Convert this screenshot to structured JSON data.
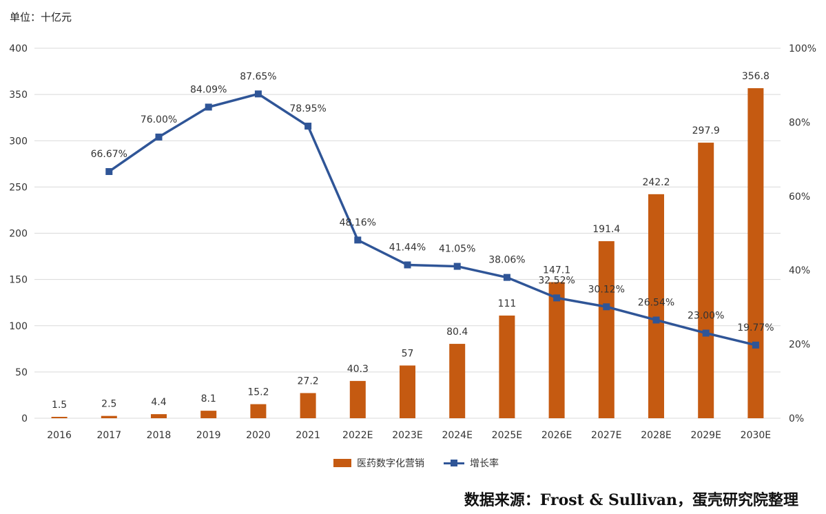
{
  "unit_label": "单位：十亿元",
  "source": "数据来源：Frost & Sullivan，蛋壳研究院整理",
  "colors": {
    "bar": "#C55A11",
    "line": "#2F5597",
    "grid": "#D9D9D9"
  },
  "chart_data": {
    "type": "bar",
    "categories": [
      "2016",
      "2017",
      "2018",
      "2019",
      "2020",
      "2021",
      "2022E",
      "2023E",
      "2024E",
      "2025E",
      "2026E",
      "2027E",
      "2028E",
      "2029E",
      "2030E"
    ],
    "series": [
      {
        "name": "医药数字化营销",
        "type": "bar",
        "axis": "left",
        "values": [
          1.5,
          2.5,
          4.4,
          8.1,
          15.2,
          27.2,
          40.3,
          57,
          80.4,
          111,
          147.1,
          191.4,
          242.2,
          297.9,
          356.8
        ],
        "labels": [
          "1.5",
          "2.5",
          "4.4",
          "8.1",
          "15.2",
          "27.2",
          "40.3",
          "57",
          "80.4",
          "111",
          "147.1",
          "191.4",
          "242.2",
          "297.9",
          "356.8"
        ]
      },
      {
        "name": "增长率",
        "type": "line",
        "axis": "right",
        "values": [
          null,
          66.67,
          76.0,
          84.09,
          87.65,
          78.95,
          48.16,
          41.44,
          41.05,
          38.06,
          32.52,
          30.12,
          26.54,
          23.0,
          19.77
        ],
        "labels": [
          "",
          "66.67%",
          "76.00%",
          "84.09%",
          "87.65%",
          "78.95%",
          "48.16%",
          "41.44%",
          "41.05%",
          "38.06%",
          "32.52%",
          "30.12%",
          "26.54%",
          "23.00%",
          "19.77%"
        ]
      }
    ],
    "y_left": {
      "min": 0,
      "max": 400,
      "ticks": [
        "0",
        "50",
        "100",
        "150",
        "200",
        "250",
        "300",
        "350",
        "400"
      ]
    },
    "y_right": {
      "min": 0,
      "max": 100,
      "ticks": [
        "0%",
        "20%",
        "40%",
        "60%",
        "80%",
        "100%"
      ]
    },
    "grid": true,
    "legend_position": "bottom"
  }
}
